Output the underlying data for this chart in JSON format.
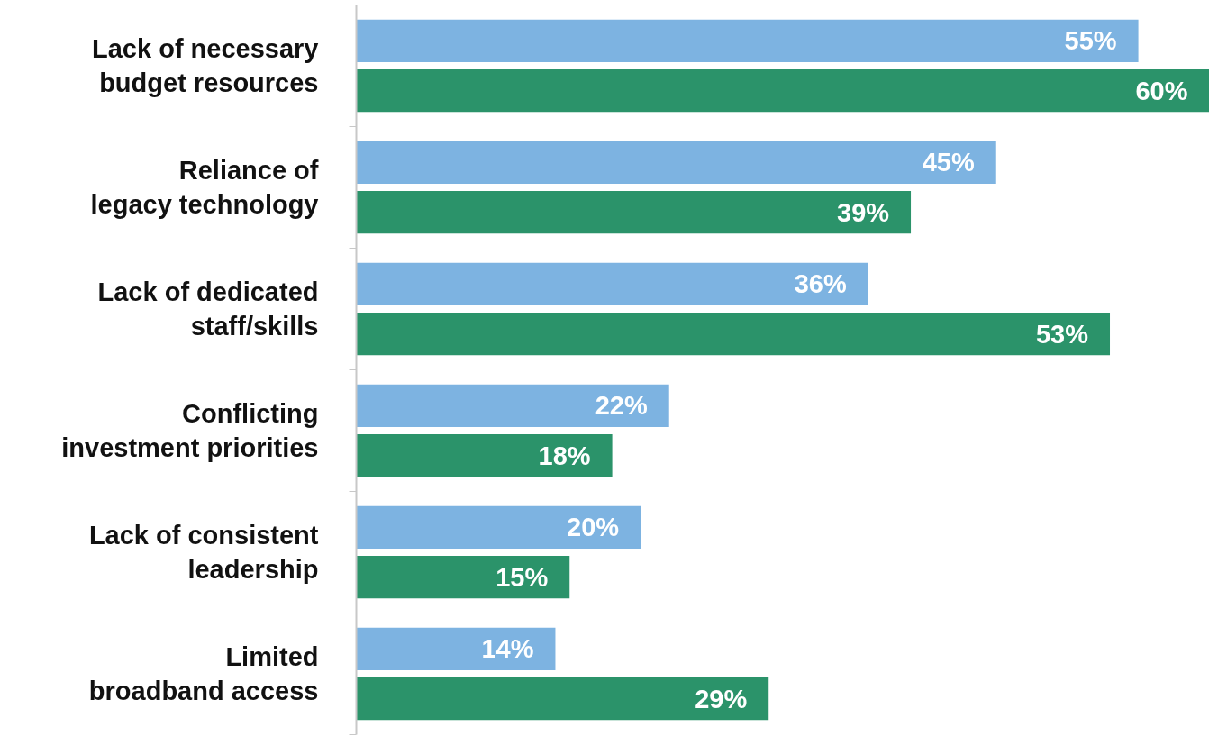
{
  "chart_data": {
    "type": "bar",
    "orientation": "horizontal",
    "grid": false,
    "categories": [
      "Lack of necessary budget resources",
      "Reliance of legacy technology",
      "Lack of dedicated staff/skills",
      "Conflicting investment priorities",
      "Lack of consistent leadership",
      "Limited broadband access"
    ],
    "series": [
      {
        "color": "#7db3e1",
        "values": [
          55,
          45,
          36,
          22,
          20,
          14
        ],
        "value_labels": [
          "55%",
          "45%",
          "36%",
          "22%",
          "20%",
          "14%"
        ]
      },
      {
        "color": "#2b936a",
        "values": [
          60,
          39,
          53,
          18,
          15,
          29
        ],
        "value_labels": [
          "60%",
          "39%",
          "53%",
          "18%",
          "15%",
          "29%"
        ]
      }
    ]
  }
}
